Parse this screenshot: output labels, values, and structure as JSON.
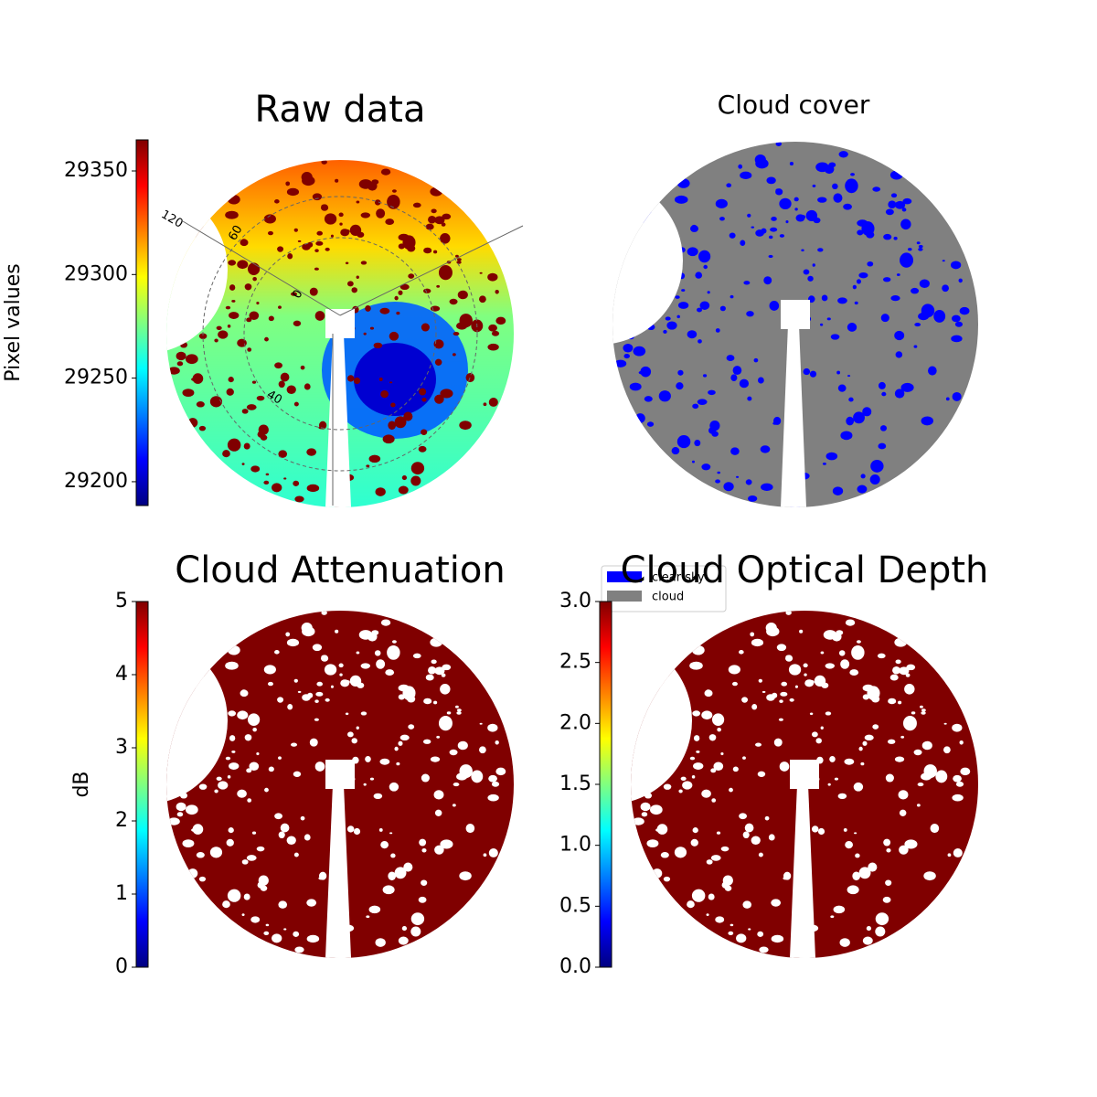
{
  "chart_data": [
    {
      "type": "image",
      "title": "Raw data",
      "colormap": "jet",
      "colorbar_label": "Pixel values",
      "clim": [
        29188.5,
        29365
      ],
      "cticks": [
        29200,
        29250,
        29300,
        29350
      ],
      "annotations": [
        "120",
        "60",
        "0",
        "40"
      ]
    },
    {
      "type": "image",
      "title": "Cloud cover",
      "series": [
        {
          "name": "clear sky",
          "color": "#0000ff"
        },
        {
          "name": "cloud",
          "color": "#808080"
        }
      ]
    },
    {
      "type": "image",
      "title": "Cloud Attenuation",
      "colormap": "jet",
      "colorbar_label": "dB",
      "clim": [
        0,
        5
      ],
      "cticks": [
        0,
        1,
        2,
        3,
        4,
        5
      ]
    },
    {
      "type": "image",
      "title": "Cloud Optical Depth",
      "colormap": "jet",
      "clim": [
        0,
        3
      ],
      "cticks": [
        {
          "value": 0,
          "label": "0.0"
        },
        0.5,
        {
          "value": 1,
          "label": "1.0"
        },
        1.5,
        {
          "value": 2,
          "label": "2.0"
        },
        2.5,
        {
          "value": 3,
          "label": "3.0"
        }
      ]
    }
  ]
}
